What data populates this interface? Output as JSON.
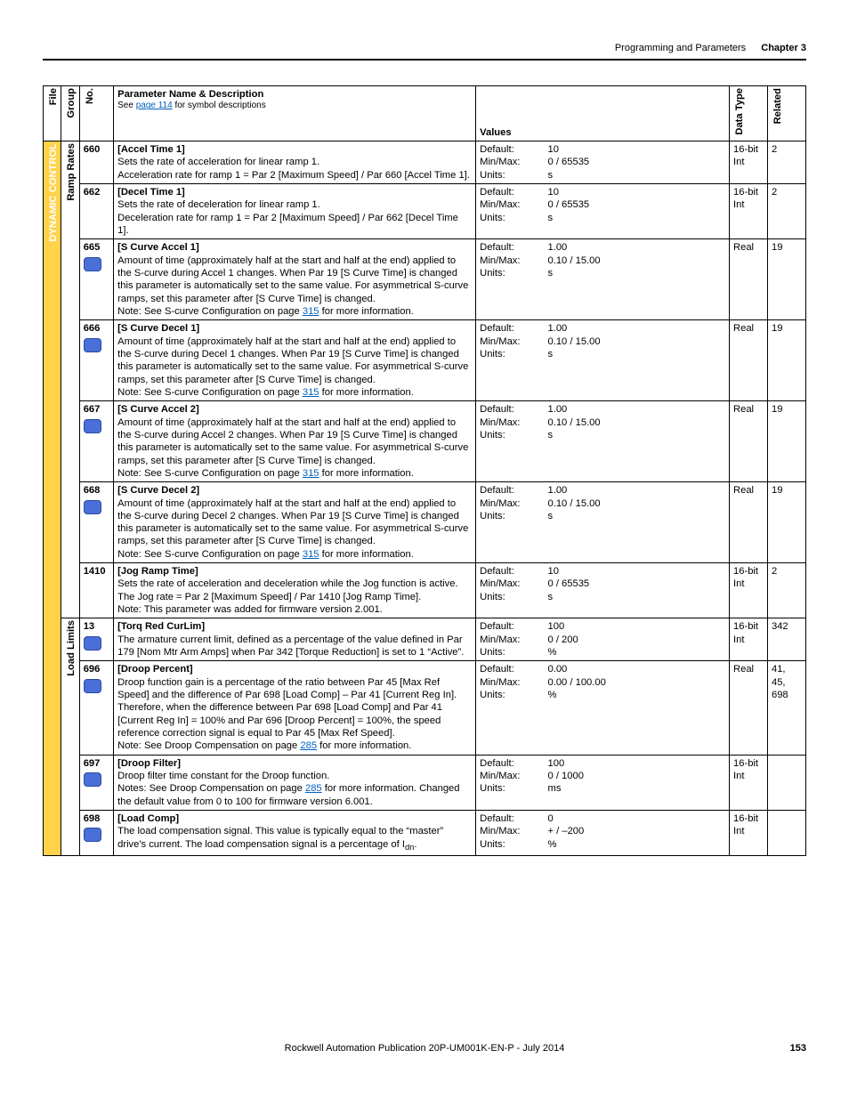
{
  "header": {
    "section": "Programming and Parameters",
    "chapter": "Chapter 3"
  },
  "columns": {
    "file": "File",
    "group": "Group",
    "no": "No.",
    "desc_title": "Parameter Name & Description",
    "desc_sub_pre": "See ",
    "desc_sub_link": "page 114",
    "desc_sub_post": " for symbol descriptions",
    "values": "Values",
    "datatype": "Data Type",
    "related": "Related"
  },
  "file_label": "DYNAMIC CONTROL",
  "groups": {
    "ramp": "Ramp Rates",
    "load": "Load Limits"
  },
  "value_labels": {
    "default": "Default:",
    "minmax": "Min/Max:",
    "units": "Units:"
  },
  "rows": [
    {
      "group": "ramp",
      "no": "660",
      "icon": false,
      "name": "[Accel Time 1]",
      "desc": "Sets the rate of acceleration for linear ramp 1.\nAcceleration rate for ramp 1 = Par 2 [Maximum Speed] / Par 660 [Accel Time 1].",
      "default": "10",
      "minmax": "0 / 65535",
      "units": "s",
      "dt": "16-bit Int",
      "rel": "2"
    },
    {
      "group": "ramp",
      "no": "662",
      "icon": false,
      "name": "[Decel Time 1]",
      "desc": "Sets the rate of deceleration for linear ramp 1.\nDeceleration rate for ramp 1 = Par 2 [Maximum Speed] / Par 662 [Decel Time 1].",
      "default": "10",
      "minmax": "0 / 65535",
      "units": "s",
      "dt": "16-bit Int",
      "rel": "2"
    },
    {
      "group": "ramp",
      "no": "665",
      "icon": true,
      "name": "[S Curve Accel 1]",
      "desc": "Amount of time (approximately half at the start and half at the end) applied to the S-curve during Accel 1 changes. When Par 19 [S Curve Time] is changed this parameter is automatically set to the same value. For asymmetrical S-curve ramps, set this parameter after [S Curve Time] is changed.",
      "note_pre": "Note: See S-curve Configuration on page ",
      "note_link": "315",
      "note_post": " for more information.",
      "default": "1.00",
      "minmax": "0.10 / 15.00",
      "units": "s",
      "dt": "Real",
      "rel": "19"
    },
    {
      "group": "ramp",
      "no": "666",
      "icon": true,
      "name": "[S Curve Decel 1]",
      "desc": "Amount of time (approximately half at the start and half at the end) applied to the S-curve during Decel 1 changes. When Par 19 [S Curve Time] is changed this parameter is automatically set to the same value. For asymmetrical S-curve ramps, set this parameter after [S Curve Time] is changed.",
      "note_pre": "Note: See S-curve Configuration on page ",
      "note_link": "315",
      "note_post": " for more information.",
      "default": "1.00",
      "minmax": "0.10 / 15.00",
      "units": "s",
      "dt": "Real",
      "rel": "19"
    },
    {
      "group": "ramp",
      "no": "667",
      "icon": true,
      "name": "[S Curve Accel 2]",
      "desc": "Amount of time (approximately half at the start and half at the end) applied to the S-curve during Accel 2 changes. When Par 19 [S Curve Time] is changed this parameter is automatically set to the same value. For asymmetrical S-curve ramps, set this parameter after [S Curve Time] is changed.",
      "note_pre": "Note: See S-curve Configuration on page ",
      "note_link": "315",
      "note_post": " for more information.",
      "default": "1.00",
      "minmax": "0.10 / 15.00",
      "units": "s",
      "dt": "Real",
      "rel": "19"
    },
    {
      "group": "ramp",
      "no": "668",
      "icon": true,
      "name": "[S Curve Decel 2]",
      "desc": "Amount of time (approximately half at the start and half at the end) applied to the S-curve during Decel 2 changes. When Par 19 [S Curve Time] is changed this parameter is automatically set to the same value. For asymmetrical S-curve ramps, set this parameter after [S Curve Time] is changed.",
      "note_pre": "Note: See S-curve Configuration on page ",
      "note_link": "315",
      "note_post": " for more information.",
      "default": "1.00",
      "minmax": "0.10 / 15.00",
      "units": "s",
      "dt": "Real",
      "rel": "19"
    },
    {
      "group": "ramp",
      "no": "1410",
      "icon": false,
      "name": "[Jog Ramp Time]",
      "desc": "Sets the rate of acceleration and deceleration while the Jog function is active. The Jog rate = Par 2 [Maximum Speed] / Par 1410 [Jog Ramp Time].\nNote: This parameter was added for firmware version 2.001.",
      "default": "10",
      "minmax": "0 / 65535",
      "units": "s",
      "dt": "16-bit Int",
      "rel": "2"
    },
    {
      "group": "load",
      "no": "13",
      "icon": true,
      "name": "[Torq Red CurLim]",
      "desc": "The armature current limit, defined as a percentage of the value defined in Par 179 [Nom Mtr Arm Amps] when Par 342 [Torque Reduction] is set to 1 “Active”.",
      "default": "100",
      "minmax": "0 / 200",
      "units": "%",
      "dt": "16-bit Int",
      "rel": "342"
    },
    {
      "group": "load",
      "no": "696",
      "icon": true,
      "name": "[Droop Percent]",
      "desc": "Droop function gain is a percentage of the ratio between Par 45 [Max Ref Speed] and the difference of Par 698 [Load Comp] – Par 41 [Current Reg In]. Therefore, when the difference between Par 698 [Load Comp] and Par 41 [Current Reg In] = 100% and Par 696 [Droop Percent] = 100%, the speed reference correction signal is equal to Par 45 [Max Ref Speed].",
      "note_pre": "Note: See Droop Compensation on page ",
      "note_link": "285",
      "note_post": " for more information.",
      "default": "0.00",
      "minmax": "0.00 / 100.00",
      "units": "%",
      "dt": "Real",
      "rel": "41, 45, 698"
    },
    {
      "group": "load",
      "no": "697",
      "icon": true,
      "name": "[Droop Filter]",
      "desc": "Droop filter time constant for the Droop function.",
      "note_pre": "Notes: See Droop Compensation on page ",
      "note_link": "285",
      "note_post": " for more information. Changed the default value from 0 to 100 for firmware version 6.001.",
      "default": "100",
      "minmax": "0 / 1000",
      "units": "ms",
      "dt": "16-bit Int",
      "rel": ""
    },
    {
      "group": "load",
      "no": "698",
      "icon": true,
      "name": "[Load Comp]",
      "desc_html": "The load compensation signal. This value is typically equal to the “master” drive's current. The load compensation signal is a percentage of I<sub>dn</sub>.",
      "default": "0",
      "minmax": "+ / –200",
      "units": "%",
      "dt": "16-bit Int",
      "rel": ""
    }
  ],
  "footer": {
    "pub": "Rockwell Automation Publication 20P-UM001K-EN-P - July 2014",
    "page": "153"
  },
  "colors": {
    "file_bg": "#ffd24a",
    "icon_bg": "#4a6fd8",
    "link": "#0060c0"
  }
}
